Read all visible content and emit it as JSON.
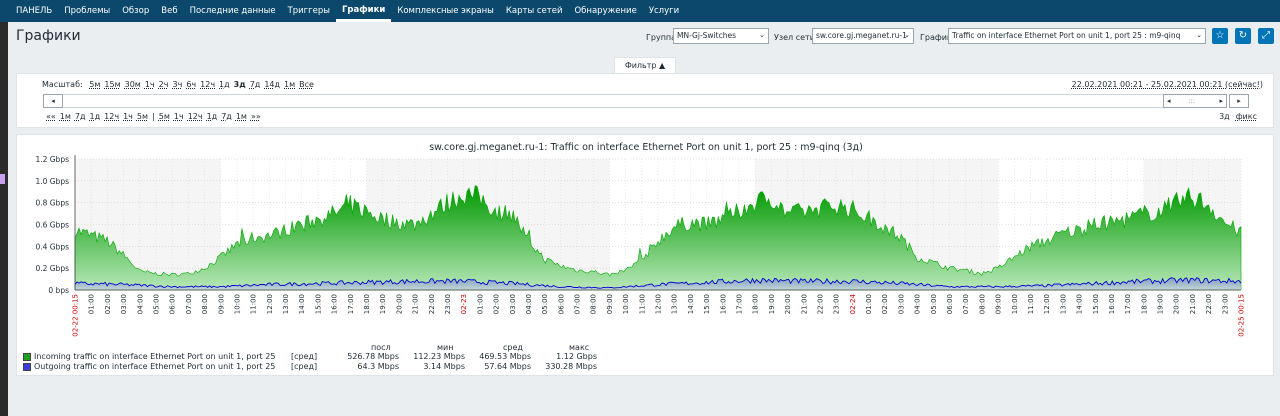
{
  "nav": {
    "items": [
      "ПАНЕЛЬ",
      "Проблемы",
      "Обзор",
      "Веб",
      "Последние данные",
      "Триггеры",
      "Графики",
      "Комплексные экраны",
      "Карты сетей",
      "Обнаружение",
      "Услуги"
    ],
    "active": "Графики"
  },
  "header": {
    "title": "Графики",
    "group_label": "Группа",
    "group_value": "MN-Gj-Switches",
    "host_label": "Узел сети",
    "host_value": "sw.core.gj.meganet.ru-1",
    "graph_label": "График",
    "graph_value": "Traffic on interface Ethernet Port on unit 1, port 25 : m9-qinq",
    "buttons": [
      "star-icon",
      "refresh-icon",
      "fullscreen-icon"
    ]
  },
  "filter": {
    "tab_label": "Фильтр ▲",
    "zoom_label": "Масштаб:",
    "zoom_options": [
      "5м",
      "15м",
      "30м",
      "1ч",
      "2ч",
      "3ч",
      "6ч",
      "12ч",
      "1д",
      "3д",
      "7д",
      "14д",
      "1м",
      "Все"
    ],
    "zoom_active": "3д",
    "period": "22.02.2021 00:21 - 25.02.2021 00:21 (сейчас!)",
    "shift_back": [
      "««",
      "1м",
      "7д",
      "1д",
      "12ч",
      "1ч",
      "5м"
    ],
    "separator": "|",
    "shift_fwd": [
      "5м",
      "1ч",
      "12ч",
      "1д",
      "7д",
      "1м",
      "»»"
    ],
    "fixed_label": "3д",
    "fix_link": "фикс",
    "nav_left": "◂",
    "nav_right": "▸",
    "scroll_left": "◂",
    "scroll_handle": ":::",
    "scroll_right": "▸"
  },
  "chart_data": {
    "type": "area",
    "title": "sw.core.gj.meganet.ru-1: Traffic on interface Ethernet Port on unit 1, port 25 : m9-qinq (3д)",
    "y_unit": "bps",
    "y_ticks": [
      "0 bps",
      "0.2 Gbps",
      "0.4 Gbps",
      "0.6 Gbps",
      "0.8 Gbps",
      "1.0 Gbps",
      "1.2 Gbps"
    ],
    "ylim": [
      0,
      1.2
    ],
    "x_hour_labels": [
      "01:00",
      "02:00",
      "03:00",
      "04:00",
      "05:00",
      "06:00",
      "07:00",
      "08:00",
      "09:00",
      "10:00",
      "11:00",
      "12:00",
      "13:00",
      "14:00",
      "15:00",
      "16:00",
      "17:00",
      "18:00",
      "19:00",
      "20:00",
      "21:00",
      "22:00",
      "23:00"
    ],
    "x_date_labels": [
      "02-22 00:15",
      "02-23",
      "02-24",
      "02-25 00:15"
    ],
    "series": [
      {
        "name": "Incoming traffic on interface Ethernet Port on unit 1, port 25",
        "color": "#00aa00",
        "hours": [
          0,
          1,
          2,
          3,
          4,
          5,
          6,
          7,
          8,
          9,
          10,
          11,
          12,
          13,
          14,
          15,
          16,
          17,
          18,
          19,
          20,
          21,
          22,
          23,
          24,
          25,
          26,
          27,
          28,
          29,
          30,
          31,
          32,
          33,
          34,
          35,
          36,
          37,
          38,
          39,
          40,
          41,
          42,
          43,
          44,
          45,
          46,
          47,
          48,
          49,
          50,
          51,
          52,
          53,
          54,
          55,
          56,
          57,
          58,
          59,
          60,
          61,
          62,
          63,
          64,
          65,
          66,
          67,
          68,
          69,
          70,
          71,
          72
        ],
        "values_gbps": [
          0.55,
          0.5,
          0.45,
          0.32,
          0.17,
          0.15,
          0.14,
          0.15,
          0.2,
          0.3,
          0.42,
          0.48,
          0.5,
          0.55,
          0.6,
          0.65,
          0.7,
          0.78,
          0.72,
          0.65,
          0.62,
          0.6,
          0.7,
          0.8,
          0.88,
          0.85,
          0.72,
          0.7,
          0.45,
          0.28,
          0.22,
          0.18,
          0.17,
          0.14,
          0.18,
          0.28,
          0.45,
          0.58,
          0.62,
          0.6,
          0.65,
          0.72,
          0.8,
          0.85,
          0.7,
          0.72,
          0.75,
          0.78,
          0.74,
          0.66,
          0.58,
          0.48,
          0.3,
          0.25,
          0.2,
          0.18,
          0.15,
          0.2,
          0.3,
          0.4,
          0.45,
          0.52,
          0.55,
          0.6,
          0.62,
          0.65,
          0.7,
          0.72,
          0.8,
          0.85,
          0.78,
          0.62,
          0.52
        ]
      },
      {
        "name": "Outgoing traffic on interface Ethernet Port on unit 1, port 25",
        "color": "#0000cc",
        "hours": [
          0,
          3,
          6,
          9,
          12,
          15,
          18,
          21,
          24,
          27,
          30,
          33,
          36,
          39,
          42,
          45,
          48,
          51,
          54,
          57,
          60,
          63,
          66,
          69,
          72
        ],
        "values_gbps": [
          0.06,
          0.05,
          0.03,
          0.03,
          0.05,
          0.06,
          0.07,
          0.08,
          0.08,
          0.06,
          0.03,
          0.02,
          0.05,
          0.07,
          0.09,
          0.08,
          0.08,
          0.06,
          0.03,
          0.03,
          0.04,
          0.06,
          0.08,
          0.09,
          0.08
        ]
      }
    ],
    "legend": {
      "headers": [
        "посл",
        "мин",
        "сред",
        "макс"
      ],
      "rows": [
        {
          "color": "#1ea01e",
          "name": "Incoming traffic on interface Ethernet Port on unit 1, port 25",
          "func": "[сред]",
          "last": "526.78 Mbps",
          "min": "112.23 Mbps",
          "avg": "469.53 Mbps",
          "max": "1.12 Gbps"
        },
        {
          "color": "#3b3bd6",
          "name": "Outgoing traffic on interface Ethernet Port on unit 1, port 25",
          "func": "[сред]",
          "last": "64.3 Mbps",
          "min": "3.14 Mbps",
          "avg": "57.64 Mbps",
          "max": "330.28 Mbps"
        }
      ]
    }
  }
}
